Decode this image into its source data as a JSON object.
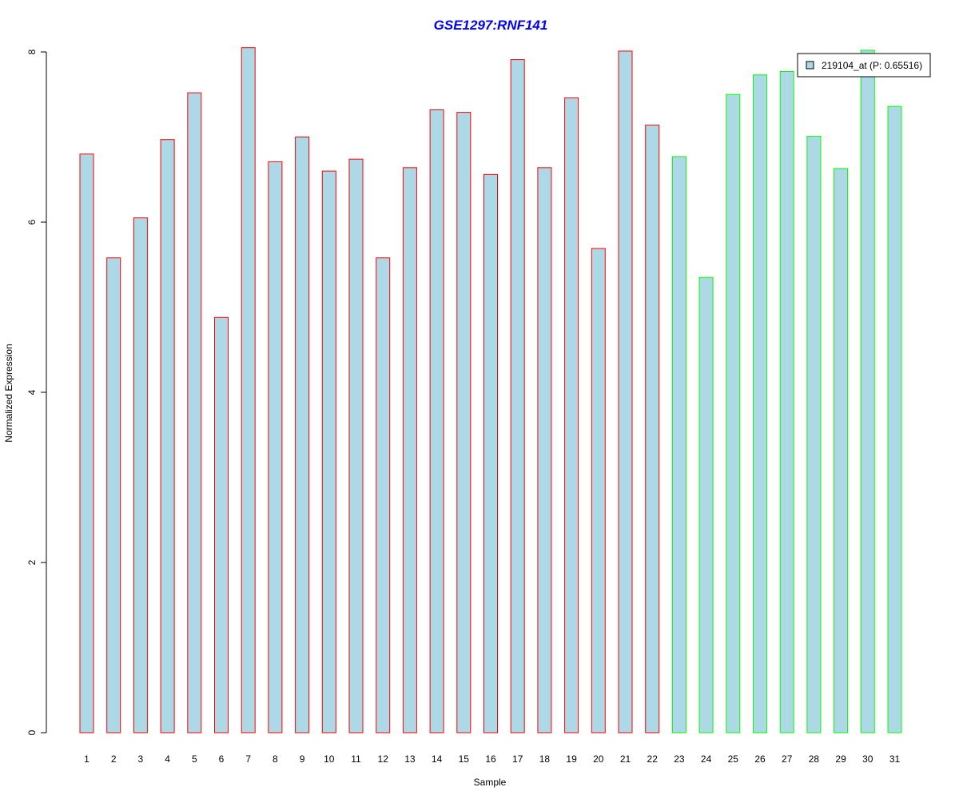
{
  "chart_data": {
    "type": "bar",
    "title": "GSE1297:RNF141",
    "xlabel": "Sample",
    "ylabel": "Normalized Expression",
    "ylim": [
      0,
      8
    ],
    "yticks": [
      0,
      2,
      4,
      6,
      8
    ],
    "categories": [
      "1",
      "2",
      "3",
      "4",
      "5",
      "6",
      "7",
      "8",
      "9",
      "10",
      "11",
      "12",
      "13",
      "14",
      "15",
      "16",
      "17",
      "18",
      "19",
      "20",
      "21",
      "22",
      "23",
      "24",
      "25",
      "26",
      "27",
      "28",
      "29",
      "30",
      "31"
    ],
    "series": [
      {
        "name": "219104_at (P: 0.65516)",
        "values": [
          6.8,
          5.58,
          6.05,
          6.97,
          7.52,
          4.88,
          8.05,
          6.71,
          7.0,
          6.6,
          6.74,
          5.58,
          6.64,
          7.32,
          7.29,
          6.56,
          7.91,
          6.64,
          7.46,
          5.69,
          8.01,
          7.14,
          6.77,
          5.35,
          7.5,
          7.73,
          7.77,
          7.01,
          6.63,
          8.02,
          7.36
        ],
        "fill": "#add8e6"
      }
    ],
    "groups": [
      {
        "samples": [
          1,
          22
        ],
        "border": "#ff0000"
      },
      {
        "samples": [
          23,
          31
        ],
        "border": "#00ff00"
      }
    ],
    "legend_position": "top-right",
    "grid": false
  }
}
